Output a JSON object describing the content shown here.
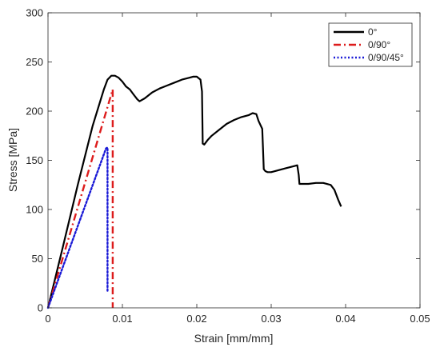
{
  "chart_data": {
    "type": "line",
    "title": "",
    "xlabel": "Strain [mm/mm]",
    "ylabel": "Stress [MPa]",
    "xlim": [
      0,
      0.05
    ],
    "ylim": [
      0,
      300
    ],
    "xticks": [
      0,
      0.01,
      0.02,
      0.03,
      0.04,
      0.05
    ],
    "xtick_labels": [
      "0",
      "0.01",
      "0.02",
      "0.03",
      "0.04",
      "0.05"
    ],
    "yticks": [
      0,
      50,
      100,
      150,
      200,
      250,
      300
    ],
    "ytick_labels": [
      "0",
      "50",
      "100",
      "150",
      "200",
      "250",
      "300"
    ],
    "grid": false,
    "legend_position": "top-right",
    "series": [
      {
        "name": "0°",
        "color": "#000000",
        "style": "solid",
        "x": [
          0,
          0.002,
          0.004,
          0.006,
          0.0075,
          0.008,
          0.0085,
          0.009,
          0.0095,
          0.01,
          0.0105,
          0.011,
          0.0115,
          0.012,
          0.0123,
          0.013,
          0.014,
          0.015,
          0.016,
          0.017,
          0.018,
          0.019,
          0.0195,
          0.02,
          0.0205,
          0.0207,
          0.0208,
          0.021,
          0.0215,
          0.022,
          0.023,
          0.024,
          0.025,
          0.026,
          0.027,
          0.0275,
          0.028,
          0.0283,
          0.0288,
          0.0289,
          0.029,
          0.0292,
          0.0295,
          0.03,
          0.031,
          0.032,
          0.033,
          0.0335,
          0.0337,
          0.0338,
          0.034,
          0.035,
          0.036,
          0.037,
          0.038,
          0.0385,
          0.039,
          0.0394
        ],
        "y": [
          0,
          62,
          125,
          185,
          222,
          232,
          236,
          236,
          234,
          230,
          225,
          222,
          217,
          212,
          210,
          213,
          219,
          223,
          226,
          229,
          232,
          234,
          235,
          235,
          232,
          220,
          167,
          166,
          171,
          175,
          181,
          187,
          191,
          194,
          196,
          198,
          197,
          190,
          182,
          161,
          141,
          139,
          138,
          138,
          140,
          142,
          144,
          145,
          135,
          126,
          126,
          126,
          127,
          127,
          125,
          120,
          110,
          103
        ]
      },
      {
        "name": "0/90°",
        "color": "#dd1c1c",
        "style": "dashdot",
        "x": [
          0,
          0.0087,
          0.0087
        ],
        "y": [
          0,
          222,
          0
        ]
      },
      {
        "name": "0/90/45°",
        "color": "#1a1ad6",
        "style": "dotted",
        "x": [
          0,
          0.0078,
          0.008,
          0.008
        ],
        "y": [
          0,
          162,
          163,
          17
        ]
      }
    ]
  }
}
